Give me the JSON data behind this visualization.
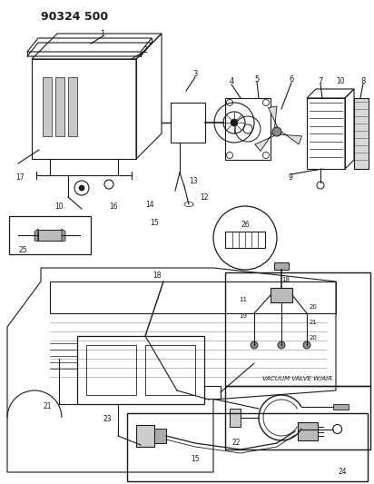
{
  "title": "90324 500",
  "bg_color": "#ffffff",
  "line_color": "#1a1a1a",
  "vacuum_label": "VACUUM VALVE W/AIR",
  "fig_width": 4.12,
  "fig_height": 5.33,
  "dpi": 100
}
